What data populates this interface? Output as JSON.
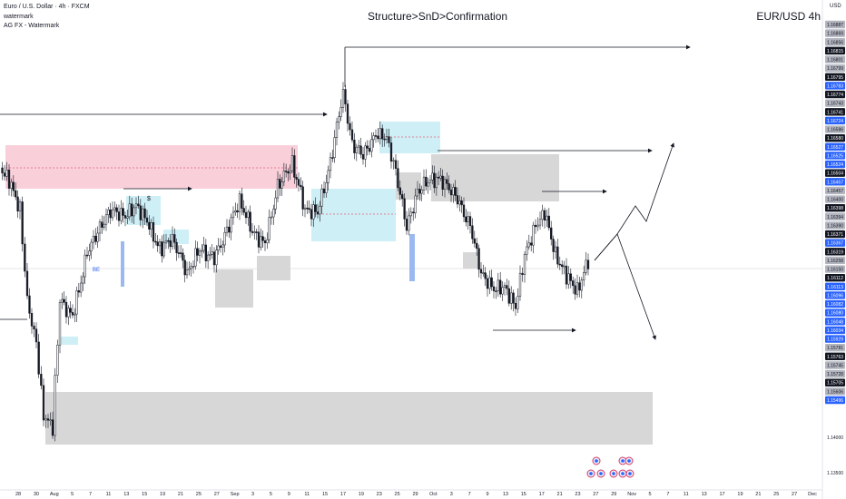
{
  "header": {
    "symbol": "Euro / U.S. Dollar · 4h · FXCM",
    "indicator_1": "watermark",
    "indicator_2": "AG FX - Watermark",
    "chart_title": "Structure>SnD>Confirmation",
    "pair_label": "EUR/USD 4h",
    "currency": "USD"
  },
  "chart_data": {
    "type": "candlestick",
    "title": "Structure>SnD>Confirmation",
    "symbol": "EUR/USD",
    "timeframe": "4h",
    "ylim": [
      1.135,
      1.1695
    ],
    "colors": {
      "up": "#ffffff",
      "down": "#131722",
      "wick": "#131722",
      "supply": "#f8c8d4",
      "demand": "#c6ecf4",
      "neutral": "#d0d0d0",
      "blue_label": "#2962ff",
      "dark_label": "#131722",
      "grey_label": "#b2b5be"
    },
    "x_ticks": [
      "28",
      "30",
      "Aug",
      "5",
      "7",
      "11",
      "13",
      "15",
      "19",
      "21",
      "25",
      "27",
      "Sep",
      "3",
      "5",
      "9",
      "11",
      "15",
      "17",
      "19",
      "23",
      "25",
      "29",
      "Oct",
      "3",
      "7",
      "9",
      "13",
      "15",
      "17",
      "21",
      "23",
      "27",
      "29",
      "Nov",
      "5",
      "7",
      "11",
      "13",
      "17",
      "19",
      "21",
      "25",
      "27",
      "Dec"
    ],
    "price_axis_labels": [
      {
        "v": "1.16887",
        "s": "grey"
      },
      {
        "v": "1.16869",
        "s": "grey"
      },
      {
        "v": "1.16856",
        "s": "grey"
      },
      {
        "v": "1.16815",
        "s": "dark"
      },
      {
        "v": "1.16801",
        "s": "grey"
      },
      {
        "v": "1.16799",
        "s": "grey"
      },
      {
        "v": "1.16795",
        "s": "dark"
      },
      {
        "v": "1.16783",
        "s": "blue"
      },
      {
        "v": "1.16774",
        "s": "dark"
      },
      {
        "v": "1.16743",
        "s": "grey"
      },
      {
        "v": "1.16741",
        "s": "dark"
      },
      {
        "v": "1.16724",
        "s": "blue"
      },
      {
        "v": "1.16586",
        "s": "grey"
      },
      {
        "v": "1.16580",
        "s": "dark"
      },
      {
        "v": "1.16527",
        "s": "blue"
      },
      {
        "v": "1.16525",
        "s": "blue"
      },
      {
        "v": "1.16524",
        "s": "blue"
      },
      {
        "v": "1.16504",
        "s": "dark"
      },
      {
        "v": "1.16457",
        "s": "blue"
      },
      {
        "v": "1.16457",
        "s": "grey"
      },
      {
        "v": "1.16400",
        "s": "grey"
      },
      {
        "v": "1.16398",
        "s": "dark"
      },
      {
        "v": "1.16394",
        "s": "grey"
      },
      {
        "v": "1.16390",
        "s": "grey"
      },
      {
        "v": "1.16371",
        "s": "dark"
      },
      {
        "v": "1.16367",
        "s": "blue"
      },
      {
        "v": "1.16319",
        "s": "dark"
      },
      {
        "v": "1.16258",
        "s": "grey"
      },
      {
        "v": "1.16150",
        "s": "grey"
      },
      {
        "v": "1.16112",
        "s": "dark"
      },
      {
        "v": "1.16113",
        "s": "blue"
      },
      {
        "v": "1.16096",
        "s": "blue"
      },
      {
        "v": "1.16082",
        "s": "blue"
      },
      {
        "v": "1.16080",
        "s": "blue"
      },
      {
        "v": "1.16048",
        "s": "blue"
      },
      {
        "v": "1.16034",
        "s": "blue"
      },
      {
        "v": "1.15929",
        "s": "blue"
      },
      {
        "v": "1.15781",
        "s": "grey"
      },
      {
        "v": "1.15763",
        "s": "dark"
      },
      {
        "v": "1.15745",
        "s": "grey"
      },
      {
        "v": "1.15728",
        "s": "grey"
      },
      {
        "v": "1.15705",
        "s": "dark"
      },
      {
        "v": "1.15606",
        "s": "grey"
      },
      {
        "v": "1.15496",
        "s": "blue"
      }
    ],
    "bottom_axis_labels": [
      "1.14000",
      "1.13500"
    ],
    "annotations": [
      "BE",
      "$"
    ]
  }
}
